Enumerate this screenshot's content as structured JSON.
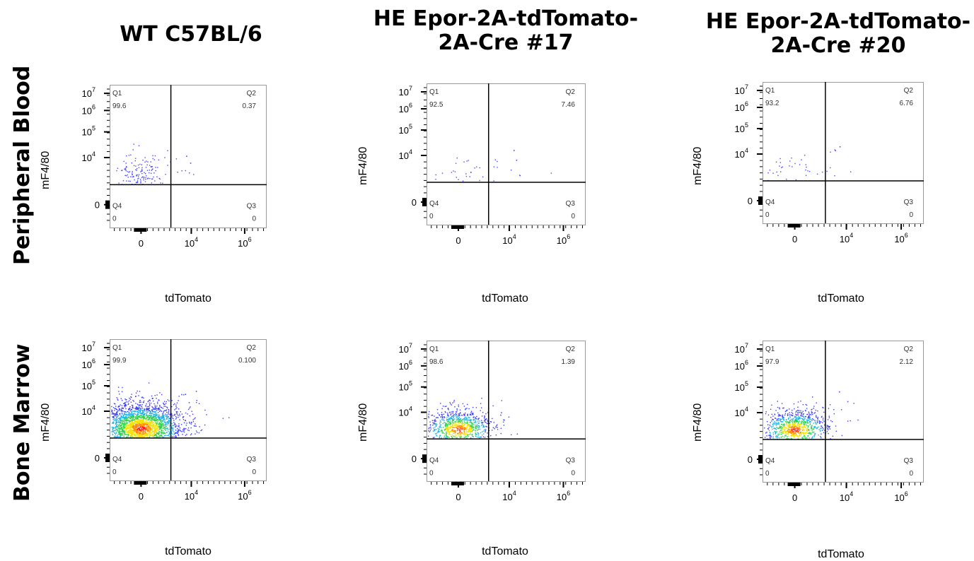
{
  "columns": [
    {
      "title_line1": "WT C57BL/6",
      "title_line2": ""
    },
    {
      "title_line1": "HE Epor-2A-tdTomato-",
      "title_line2": "2A-Cre #17"
    },
    {
      "title_line1": "HE Epor-2A-tdTomato-",
      "title_line2": "2A-Cre #20"
    }
  ],
  "rows": [
    {
      "title": "Peripheral Blood"
    },
    {
      "title": "Bone Marrow"
    }
  ],
  "axis": {
    "x_label": "tdTomato",
    "y_label": "mF4/80",
    "x_ticks": [
      {
        "base": "0",
        "exp": ""
      },
      {
        "base": "10",
        "exp": "4"
      },
      {
        "base": "10",
        "exp": "6"
      }
    ],
    "y_ticks": [
      {
        "base": "10",
        "exp": "7"
      },
      {
        "base": "10",
        "exp": "6"
      },
      {
        "base": "10",
        "exp": "5"
      },
      {
        "base": "10",
        "exp": "4"
      },
      {
        "base": "0",
        "exp": ""
      }
    ]
  },
  "quadrant_names": {
    "q1": "Q1",
    "q2": "Q2",
    "q3": "Q3",
    "q4": "Q4"
  },
  "chart_data": [
    {
      "type": "scatter",
      "sample": "WT C57BL/6",
      "tissue": "Peripheral Blood",
      "xlabel": "tdTomato",
      "ylabel": "mF4/80",
      "quadrants": {
        "Q1": "99.6",
        "Q2": "0.37",
        "Q3": "0",
        "Q4": "0"
      },
      "density": "low"
    },
    {
      "type": "scatter",
      "sample": "HE Epor-2A-tdTomato-2A-Cre #17",
      "tissue": "Peripheral Blood",
      "xlabel": "tdTomato",
      "ylabel": "mF4/80",
      "quadrants": {
        "Q1": "92.5",
        "Q2": "7.46",
        "Q3": "0",
        "Q4": "0"
      },
      "density": "sparse"
    },
    {
      "type": "scatter",
      "sample": "HE Epor-2A-tdTomato-2A-Cre #20",
      "tissue": "Peripheral Blood",
      "xlabel": "tdTomato",
      "ylabel": "mF4/80",
      "quadrants": {
        "Q1": "93.2",
        "Q2": "6.76",
        "Q3": "0",
        "Q4": "0"
      },
      "density": "sparse"
    },
    {
      "type": "scatter",
      "sample": "WT C57BL/6",
      "tissue": "Bone Marrow",
      "xlabel": "tdTomato",
      "ylabel": "mF4/80",
      "quadrants": {
        "Q1": "99.9",
        "Q2": "0.100",
        "Q3": "0",
        "Q4": "0"
      },
      "density": "high"
    },
    {
      "type": "scatter",
      "sample": "HE Epor-2A-tdTomato-2A-Cre #17",
      "tissue": "Bone Marrow",
      "xlabel": "tdTomato",
      "ylabel": "mF4/80",
      "quadrants": {
        "Q1": "98.6",
        "Q2": "1.39",
        "Q3": "0",
        "Q4": "0"
      },
      "density": "medium"
    },
    {
      "type": "scatter",
      "sample": "HE Epor-2A-tdTomato-2A-Cre #20",
      "tissue": "Bone Marrow",
      "xlabel": "tdTomato",
      "ylabel": "mF4/80",
      "quadrants": {
        "Q1": "97.9",
        "Q2": "2.12",
        "Q3": "0",
        "Q4": "0"
      },
      "density": "medium"
    }
  ]
}
